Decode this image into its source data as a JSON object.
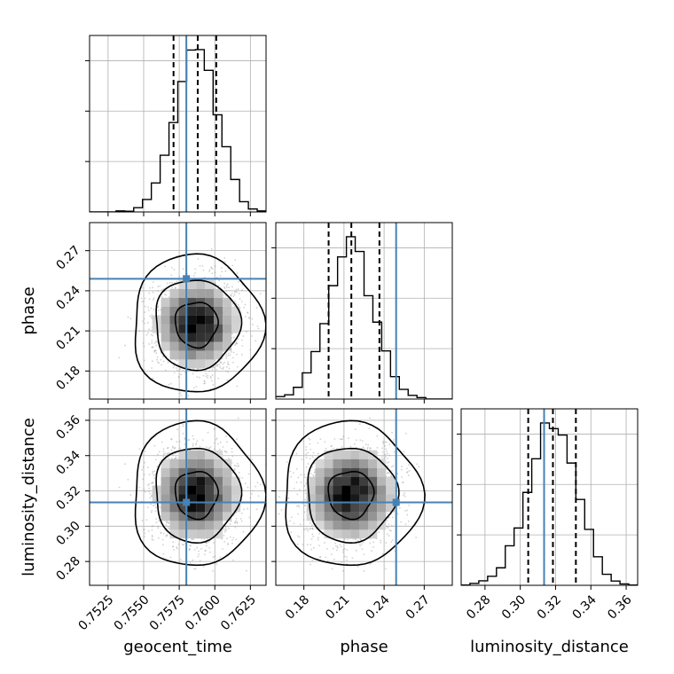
{
  "chart_data": {
    "type": "corner",
    "parameters": [
      "geocent_time",
      "phase",
      "luminosity_distance"
    ],
    "ranges": {
      "geocent_time": [
        0.7512,
        0.7636
      ],
      "phase": [
        0.159,
        0.291
      ],
      "luminosity_distance": [
        0.2665,
        0.3665
      ]
    },
    "ticks": {
      "geocent_time": [
        "0.7525",
        "0.7550",
        "0.7575",
        "0.7600",
        "0.7625"
      ],
      "phase": [
        "0.18",
        "0.21",
        "0.24",
        "0.27"
      ],
      "luminosity_distance_x": [
        "0.28",
        "0.30",
        "0.32",
        "0.34",
        "0.36"
      ],
      "luminosity_distance_y": [
        "0.28",
        "0.30",
        "0.32",
        "0.34",
        "0.36"
      ]
    },
    "truths": {
      "geocent_time": 0.758,
      "phase": 0.249,
      "luminosity_distance": 0.3135
    },
    "quantiles": {
      "geocent_time": [
        0.7571,
        0.7588,
        0.7601
      ],
      "phase": [
        0.1985,
        0.2155,
        0.2365
      ],
      "luminosity_distance": [
        0.3045,
        0.3185,
        0.3315
      ]
    },
    "posterior": {
      "geocent_time": {
        "mean": 0.7587,
        "sd": 0.0015
      },
      "phase": {
        "mean": 0.215,
        "sd": 0.017
      },
      "luminosity_distance": {
        "mean": 0.318,
        "sd": 0.0135
      }
    },
    "grid": true,
    "line_color": "#000000",
    "truth_color": "#4682b4"
  }
}
